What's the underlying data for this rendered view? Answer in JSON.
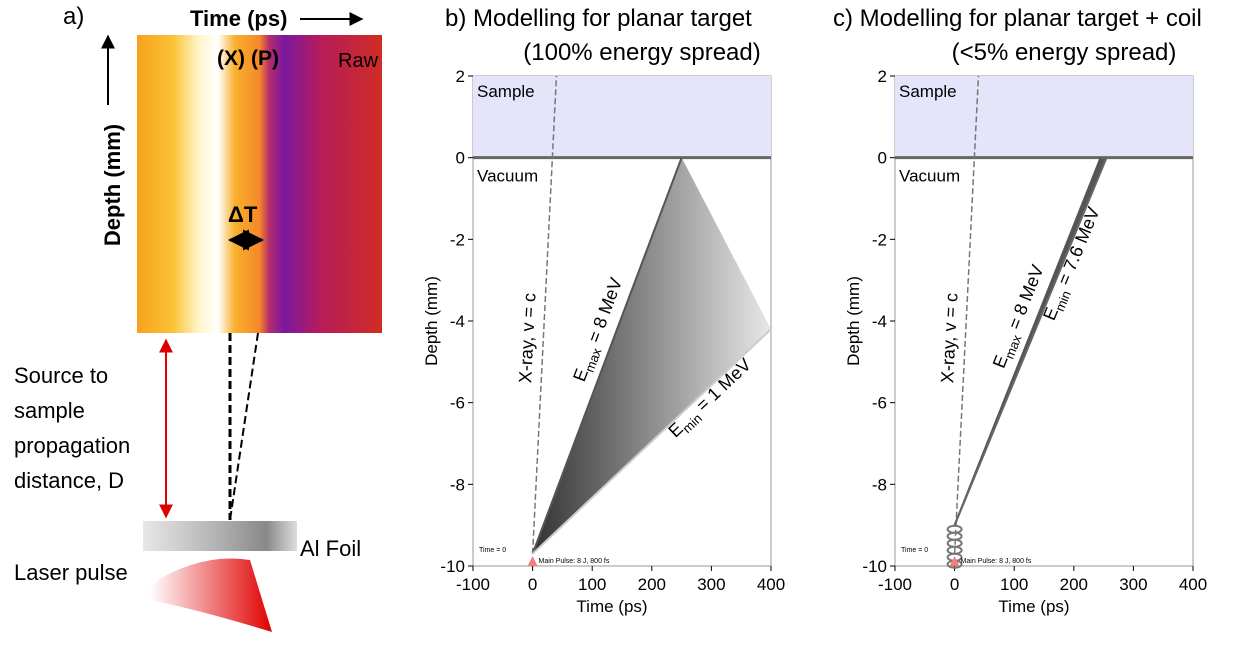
{
  "panel_a": {
    "label": "a)",
    "x_label": "Time (ps)",
    "y_label": "Depth (mm)",
    "tag_x": "(X)",
    "tag_p": "(P)",
    "raw": "Raw",
    "delta": "ΔT",
    "distance": [
      "Source to",
      "sample",
      "propagation",
      "distance, D"
    ],
    "foil": "Al Foil",
    "laser": "Laser pulse"
  },
  "chart_data": [
    {
      "type": "line",
      "title": "b)  Modelling for planar target",
      "subtitle": "(100% energy spread)",
      "x_label": "Time (ps)",
      "y_label": "Depth (mm)",
      "xlim": [
        -100,
        400
      ],
      "ylim": [
        -10,
        2
      ],
      "xticks": [
        -100,
        0,
        100,
        200,
        300,
        400
      ],
      "yticks": [
        -10,
        -8,
        -6,
        -4,
        -2,
        0,
        2
      ],
      "regions": [
        "Sample",
        "Vacuum"
      ],
      "notes": [
        "Time = 0",
        "Main Pulse:  8 J, 800 fs"
      ],
      "series": [
        {
          "label": [
            "X-ray, v = c"
          ],
          "color": "#777777",
          "x": [
            0,
            40
          ],
          "values": [
            -9.7,
            2
          ]
        },
        {
          "label": [
            "E",
            "max",
            " = 8 MeV"
          ],
          "color": "#555555",
          "x": [
            0,
            250
          ],
          "values": [
            -9.7,
            0
          ]
        },
        {
          "label": [
            "E",
            "min",
            " = 1 MeV"
          ],
          "color": "#cccccc",
          "x": [
            0,
            400
          ],
          "values": [
            -9.7,
            -4.2
          ]
        }
      ]
    },
    {
      "type": "line",
      "title": "c)  Modelling for planar target + coil",
      "subtitle": "(<5% energy spread)",
      "x_label": "Time (ps)",
      "y_label": "Depth (mm)",
      "xlim": [
        -100,
        400
      ],
      "ylim": [
        -10,
        2
      ],
      "xticks": [
        -100,
        0,
        100,
        200,
        300,
        400
      ],
      "yticks": [
        -10,
        -8,
        -6,
        -4,
        -2,
        0,
        2
      ],
      "regions": [
        "Sample",
        "Vacuum"
      ],
      "notes": [
        "Time = 0",
        "Main Pulse:  8 J, 800 fs"
      ],
      "series": [
        {
          "label": [
            "X-ray, v = c"
          ],
          "color": "#777777",
          "x": [
            0,
            40
          ],
          "values": [
            -9.7,
            2
          ]
        },
        {
          "label": [
            "E",
            "max",
            " = 8 MeV"
          ],
          "color": "#555555",
          "x": [
            0,
            245
          ],
          "values": [
            -9,
            0
          ]
        },
        {
          "label": [
            "E",
            "min",
            " = 7.6 MeV"
          ],
          "color": "#666666",
          "x": [
            0,
            255
          ],
          "values": [
            -9,
            0
          ]
        }
      ]
    }
  ]
}
